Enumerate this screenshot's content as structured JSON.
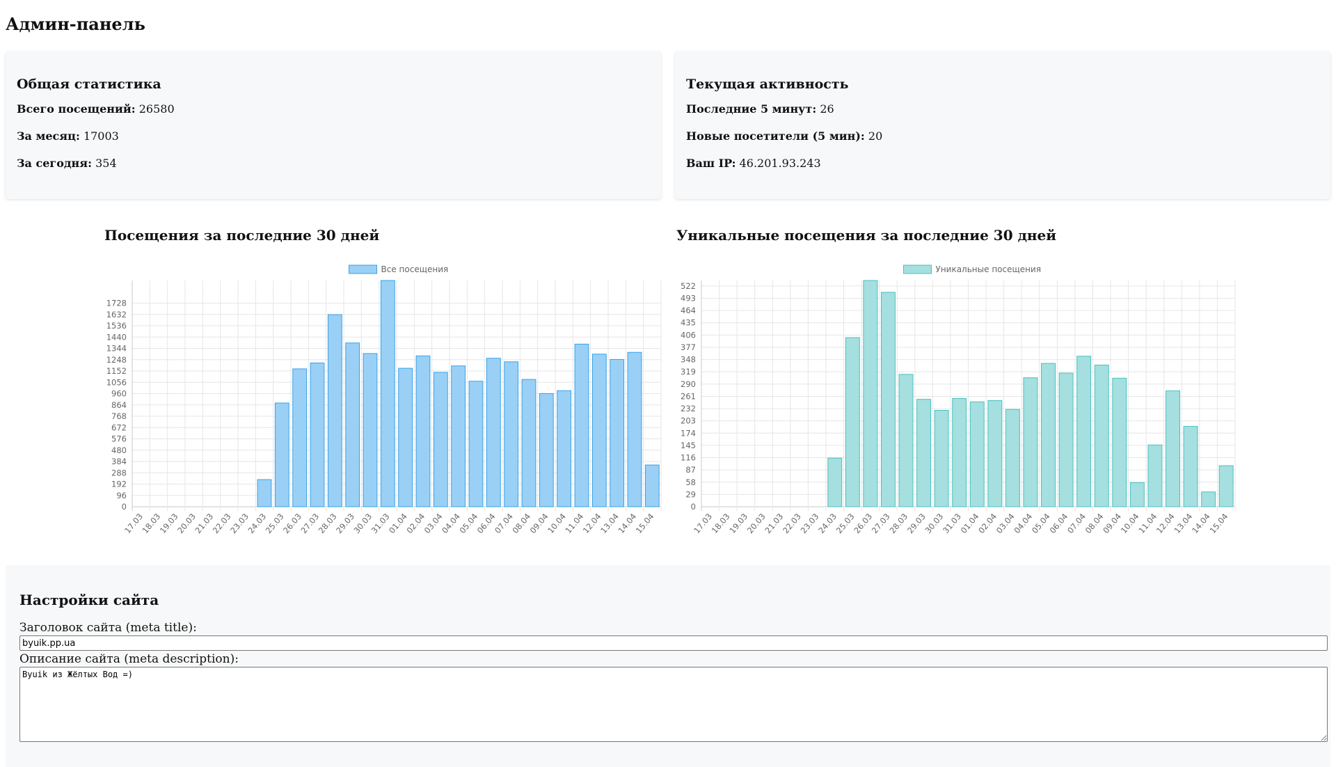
{
  "page": {
    "title": "Админ-панель"
  },
  "general_stats": {
    "title": "Общая статистика",
    "total_label": "Всего посещений:",
    "total_value": "26580",
    "month_label": "За месяц:",
    "month_value": "17003",
    "today_label": "За сегодня:",
    "today_value": "354"
  },
  "current_activity": {
    "title": "Текущая активность",
    "last5_label": "Последние 5 минут:",
    "last5_value": "26",
    "new_label": "Новые посетители (5 мин):",
    "new_value": "20",
    "ip_label": "Ваш IP:",
    "ip_value": "46.201.93.243"
  },
  "chart_data": [
    {
      "type": "bar",
      "title": "Посещения за последние 30 дней",
      "categories": [
        "17.03",
        "18.03",
        "19.03",
        "20.03",
        "21.03",
        "22.03",
        "23.03",
        "24.03",
        "25.03",
        "26.03",
        "27.03",
        "28.03",
        "29.03",
        "30.03",
        "31.03",
        "01.04",
        "02.04",
        "03.04",
        "04.04",
        "05.04",
        "06.04",
        "07.04",
        "08.04",
        "09.04",
        "10.04",
        "11.04",
        "12.04",
        "13.04",
        "14.04",
        "15.04"
      ],
      "series": [
        {
          "name": "Все посещения",
          "values": [
            0,
            0,
            0,
            0,
            0,
            0,
            0,
            230,
            880,
            1170,
            1220,
            1630,
            1390,
            1300,
            1920,
            1175,
            1280,
            1140,
            1195,
            1065,
            1260,
            1230,
            1080,
            960,
            985,
            1380,
            1295,
            1250,
            1310,
            354
          ]
        }
      ],
      "yticks": [
        0,
        96,
        192,
        288,
        384,
        480,
        576,
        672,
        768,
        864,
        960,
        1056,
        1152,
        1248,
        1344,
        1440,
        1536,
        1632,
        1728
      ],
      "ylim": [
        0,
        1920
      ],
      "grid": true,
      "legend": "top-center",
      "color": "#9ad0f5",
      "border_color": "#36a2eb"
    },
    {
      "type": "bar",
      "title": "Уникальные посещения за последние 30 дней",
      "categories": [
        "17.03",
        "18.03",
        "19.03",
        "20.03",
        "21.03",
        "22.03",
        "23.03",
        "24.03",
        "25.03",
        "26.03",
        "27.03",
        "28.03",
        "29.03",
        "30.03",
        "31.03",
        "01.04",
        "02.04",
        "03.04",
        "04.04",
        "05.04",
        "06.04",
        "07.04",
        "08.04",
        "09.04",
        "10.04",
        "11.04",
        "12.04",
        "13.04",
        "14.04",
        "15.04"
      ],
      "series": [
        {
          "name": "Уникальные посещения",
          "values": [
            0,
            0,
            0,
            0,
            0,
            0,
            0,
            115,
            400,
            535,
            507,
            313,
            254,
            228,
            256,
            248,
            251,
            230,
            305,
            339,
            316,
            356,
            335,
            304,
            57,
            146,
            274,
            190,
            35,
            97
          ]
        }
      ],
      "yticks": [
        0,
        29,
        58,
        87,
        116,
        145,
        174,
        203,
        232,
        261,
        290,
        319,
        348,
        377,
        406,
        435,
        464,
        493,
        522
      ],
      "ylim": [
        0,
        535
      ],
      "grid": true,
      "legend": "top-center",
      "color": "#a5dfdf",
      "border_color": "#4bc0c0"
    }
  ],
  "settings": {
    "title": "Настройки сайта",
    "meta_title_label": "Заголовок сайта (meta title):",
    "meta_title_value": "byuik.pp.ua",
    "meta_desc_label": "Описание сайта (meta description):",
    "meta_desc_value": "Byuik из Жёлтых Вод =)"
  }
}
